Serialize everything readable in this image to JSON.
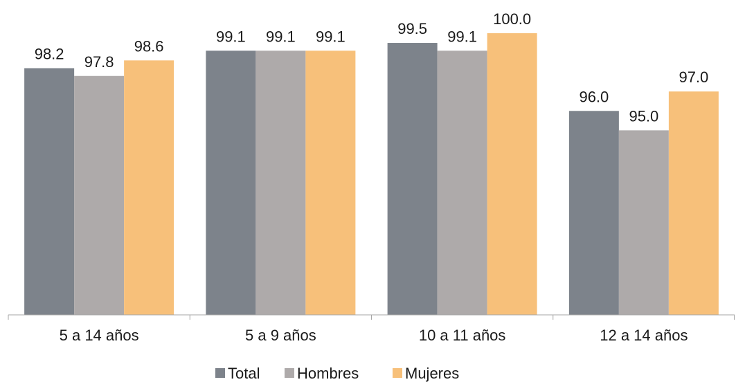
{
  "chart_data": {
    "type": "bar",
    "categories": [
      "5 a 14 años",
      "5 a 9 años",
      "10 a 11 años",
      "12 a 14 años"
    ],
    "series": [
      {
        "name": "Total",
        "values": [
          98.2,
          99.1,
          99.5,
          96.0
        ],
        "labels": [
          "98.2",
          "99.1",
          "99.5",
          "96.0"
        ],
        "color": "#7d838b"
      },
      {
        "name": "Hombres",
        "values": [
          97.8,
          99.1,
          99.1,
          95.0
        ],
        "labels": [
          "97.8",
          "99.1",
          "99.1",
          "95.0"
        ],
        "color": "#aeaaaa"
      },
      {
        "name": "Mujeres",
        "values": [
          98.6,
          99.1,
          100.0,
          97.0
        ],
        "labels": [
          "98.6",
          "99.1",
          "100.0",
          "97.0"
        ],
        "color": "#f7c07a"
      }
    ],
    "ylim": [
      85.5,
      100.0
    ],
    "grid": false,
    "legend_position": "bottom",
    "axis_color": "#a6a6a6",
    "label_color": "#1a1a1a"
  }
}
